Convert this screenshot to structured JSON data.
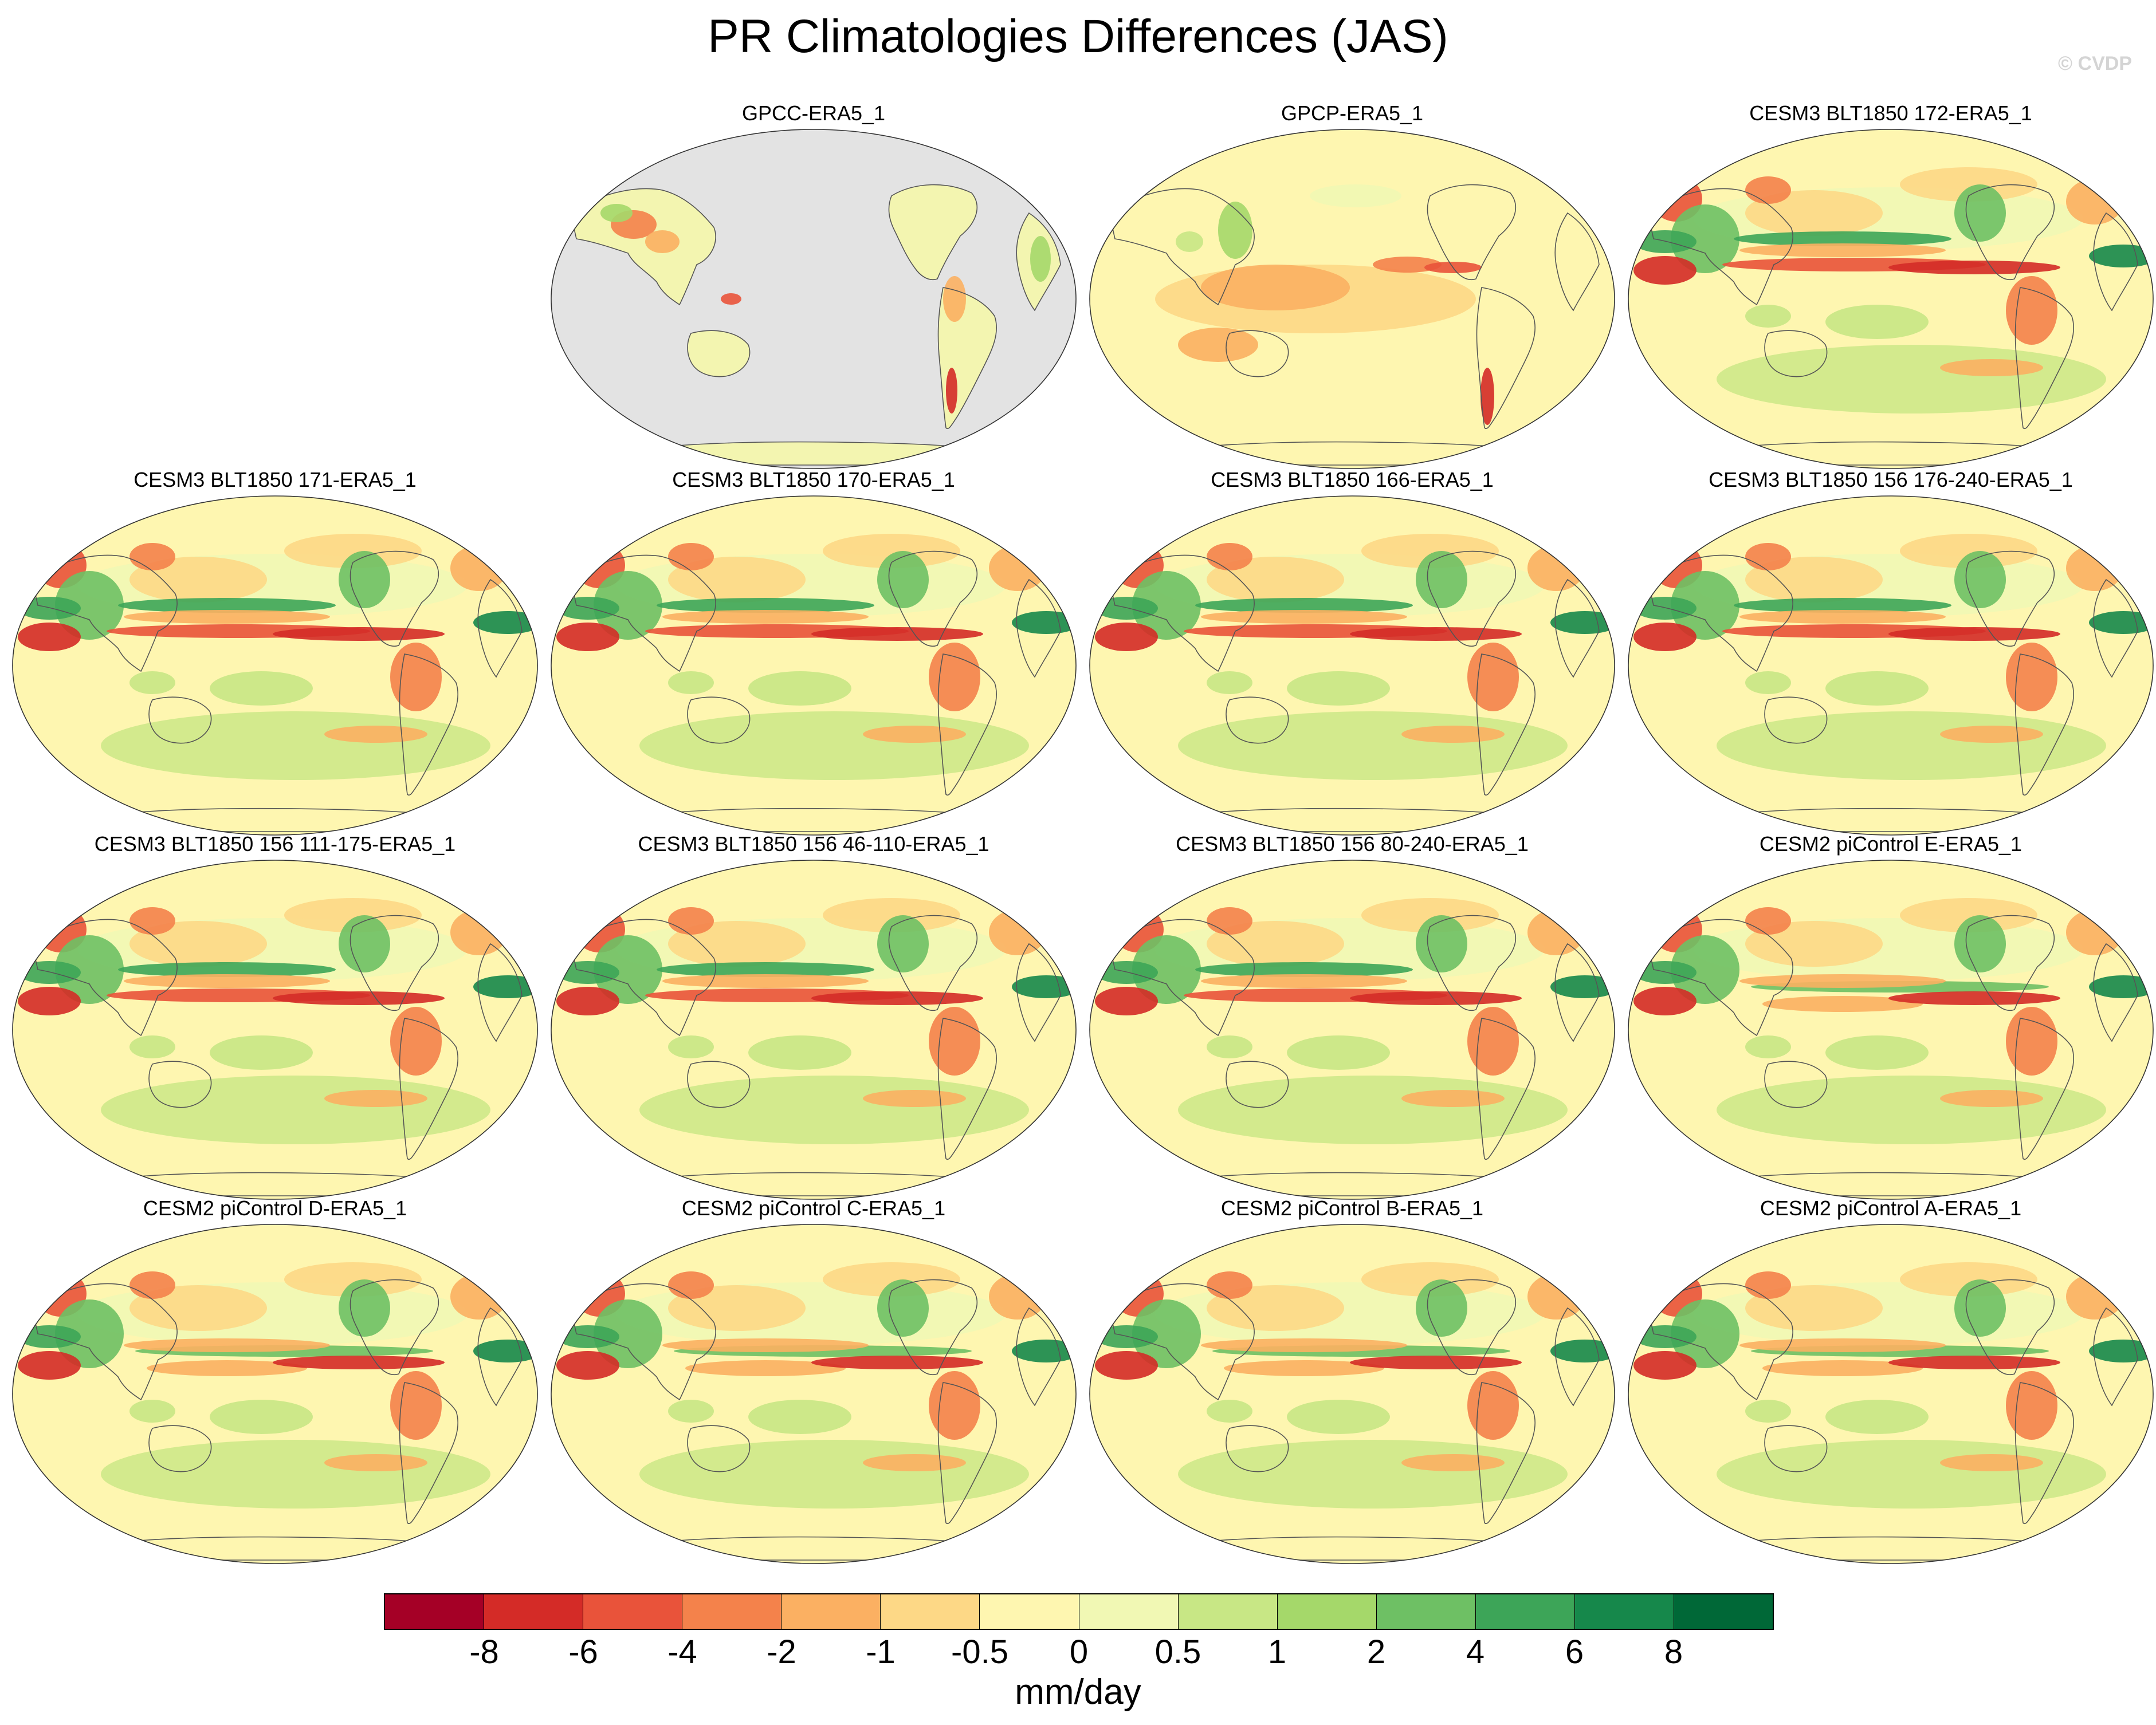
{
  "title": "PR Climatologies Differences (JAS)",
  "credit": "© CVDP",
  "panels": [
    {
      "title": "GPCC-ERA5_1",
      "style": "land"
    },
    {
      "title": "GPCP-ERA5_1",
      "style": "obs"
    },
    {
      "title": "CESM3 BLT1850 172-ERA5_1",
      "style": "model"
    },
    {
      "title": "CESM3 BLT1850 171-ERA5_1",
      "style": "model"
    },
    {
      "title": "CESM3 BLT1850 170-ERA5_1",
      "style": "model"
    },
    {
      "title": "CESM3 BLT1850 166-ERA5_1",
      "style": "model"
    },
    {
      "title": "CESM3 BLT1850 156 176-240-ERA5_1",
      "style": "model"
    },
    {
      "title": "CESM3 BLT1850 156 111-175-ERA5_1",
      "style": "model"
    },
    {
      "title": "CESM3 BLT1850 156 46-110-ERA5_1",
      "style": "model"
    },
    {
      "title": "CESM3 BLT1850 156 80-240-ERA5_1",
      "style": "model"
    },
    {
      "title": "CESM2 piControl E-ERA5_1",
      "style": "model2"
    },
    {
      "title": "CESM2 piControl D-ERA5_1",
      "style": "model2"
    },
    {
      "title": "CESM2 piControl C-ERA5_1",
      "style": "model2"
    },
    {
      "title": "CESM2 piControl B-ERA5_1",
      "style": "model2"
    },
    {
      "title": "CESM2 piControl A-ERA5_1",
      "style": "model2"
    }
  ],
  "colorbar": {
    "colors": [
      "#a50026",
      "#d42b27",
      "#e9533a",
      "#f4824b",
      "#fbb062",
      "#fdd886",
      "#fef6b0",
      "#f1f8b4",
      "#c8e785",
      "#a5d86a",
      "#6ec064",
      "#3da558",
      "#16884b",
      "#006837"
    ],
    "ticks": [
      "-8",
      "-6",
      "-4",
      "-2",
      "-1",
      "-0.5",
      "0",
      "0.5",
      "1",
      "2",
      "4",
      "6",
      "8"
    ],
    "units": "mm/day"
  },
  "chart_data": {
    "type": "heatmap",
    "title": "PR Climatologies Differences (JAS)",
    "projection": "Robinson (Pacific-centered)",
    "variable": "precipitation difference",
    "units": "mm/day",
    "color_levels": [
      -8,
      -6,
      -4,
      -2,
      -1,
      -0.5,
      0,
      0.5,
      1,
      2,
      4,
      6,
      8
    ],
    "panels": [
      "GPCC-ERA5_1",
      "GPCP-ERA5_1",
      "CESM3 BLT1850 172-ERA5_1",
      "CESM3 BLT1850 171-ERA5_1",
      "CESM3 BLT1850 170-ERA5_1",
      "CESM3 BLT1850 166-ERA5_1",
      "CESM3 BLT1850 156 176-240-ERA5_1",
      "CESM3 BLT1850 156 111-175-ERA5_1",
      "CESM3 BLT1850 156 46-110-ERA5_1",
      "CESM3 BLT1850 156 80-240-ERA5_1",
      "CESM2 piControl E-ERA5_1",
      "CESM2 piControl D-ERA5_1",
      "CESM2 piControl C-ERA5_1",
      "CESM2 piControl B-ERA5_1",
      "CESM2 piControl A-ERA5_1"
    ]
  }
}
